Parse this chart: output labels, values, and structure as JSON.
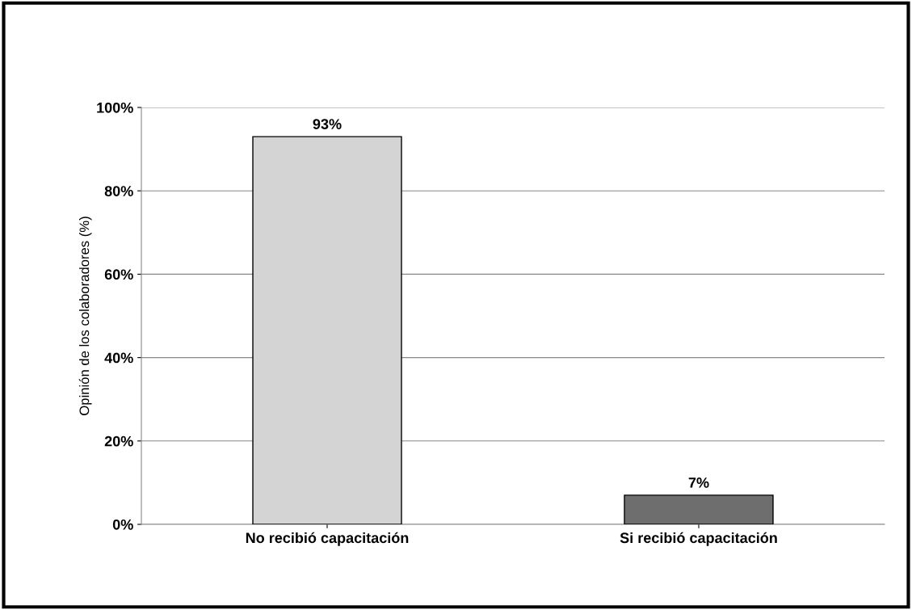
{
  "chart_data": {
    "type": "bar",
    "ylabel": "Opinión de los colaboradores (%)",
    "categories": [
      "No recibió capacitación",
      "Si recibió capacitación"
    ],
    "values": [
      93,
      7
    ],
    "colors": [
      "#d4d4d4",
      "#6e6e6e"
    ],
    "value_labels": [
      "93%",
      "7%"
    ],
    "ylim": [
      0,
      100
    ],
    "yticks": [
      {
        "value": 0,
        "label": "0%"
      },
      {
        "value": 20,
        "label": "20%"
      },
      {
        "value": 40,
        "label": "40%"
      },
      {
        "value": 60,
        "label": "60%"
      },
      {
        "value": 80,
        "label": "80%"
      },
      {
        "value": 100,
        "label": "100%"
      }
    ],
    "grid": "y",
    "legend": false
  }
}
